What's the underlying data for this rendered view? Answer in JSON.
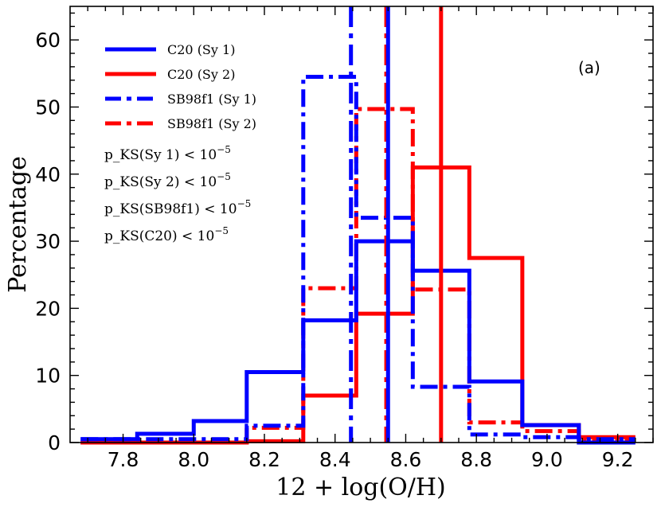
{
  "chart_data": {
    "type": "histogram",
    "title": "",
    "xlabel": "12 + log(O/H)",
    "ylabel": "Percentage",
    "xlim": [
      7.65,
      9.3
    ],
    "ylim": [
      0,
      65
    ],
    "xticks": [
      "7.8",
      "8.0",
      "8.2",
      "8.4",
      "8.6",
      "8.8",
      "9.0",
      "9.2"
    ],
    "yticks": [
      "0",
      "10",
      "20",
      "30",
      "40",
      "50",
      "60"
    ],
    "panel_label": "(a)",
    "series": [
      {
        "name": "C20 (Sy 1)",
        "color": "#0000ff",
        "style": "solid",
        "edges": [
          7.68,
          7.84,
          8.0,
          8.15,
          8.31,
          8.46,
          8.62,
          8.78,
          8.93,
          9.09,
          9.25
        ],
        "values": [
          0.5,
          1.3,
          3.2,
          10.5,
          18.2,
          30.0,
          25.6,
          9.1,
          2.6,
          0.0
        ],
        "median": 8.55
      },
      {
        "name": "C20 (Sy 2)",
        "color": "#ff0000",
        "style": "solid",
        "edges": [
          7.68,
          7.84,
          8.0,
          8.15,
          8.31,
          8.46,
          8.62,
          8.78,
          8.93,
          9.09,
          9.25
        ],
        "values": [
          0.0,
          0.0,
          0.0,
          0.2,
          7.0,
          19.2,
          41.0,
          27.5,
          2.6,
          0.8
        ],
        "median": 8.7
      },
      {
        "name": "SB98f1 (Sy 1)",
        "color": "#0000ff",
        "style": "dashdot",
        "edges": [
          7.68,
          7.84,
          8.0,
          8.15,
          8.31,
          8.46,
          8.62,
          8.78,
          8.93,
          9.09,
          9.25
        ],
        "values": [
          0.5,
          0.5,
          0.5,
          2.5,
          54.5,
          33.5,
          8.3,
          1.2,
          0.8,
          0.5
        ],
        "median": 8.445
      },
      {
        "name": "SB98f1 (Sy 2)",
        "color": "#ff0000",
        "style": "dashdot",
        "edges": [
          7.68,
          7.84,
          8.0,
          8.15,
          8.31,
          8.46,
          8.62,
          8.78,
          8.93,
          9.09,
          9.25
        ],
        "values": [
          0.0,
          0.0,
          0.0,
          2.2,
          23.0,
          49.7,
          22.8,
          3.0,
          1.7,
          0.5
        ],
        "median": 8.545
      }
    ],
    "annotations": [
      {
        "prefix": "p_KS(Sy 1)",
        "relation": " < ",
        "base": "10",
        "exponent": "−5"
      },
      {
        "prefix": "p_KS(Sy 2)",
        "relation": " < ",
        "base": "10",
        "exponent": "−5"
      },
      {
        "prefix": "p_KS(SB98f1)",
        "relation": " < ",
        "base": "10",
        "exponent": "−5"
      },
      {
        "prefix": "p_KS(C20)",
        "relation": " < ",
        "base": "10",
        "exponent": "−5"
      }
    ]
  }
}
